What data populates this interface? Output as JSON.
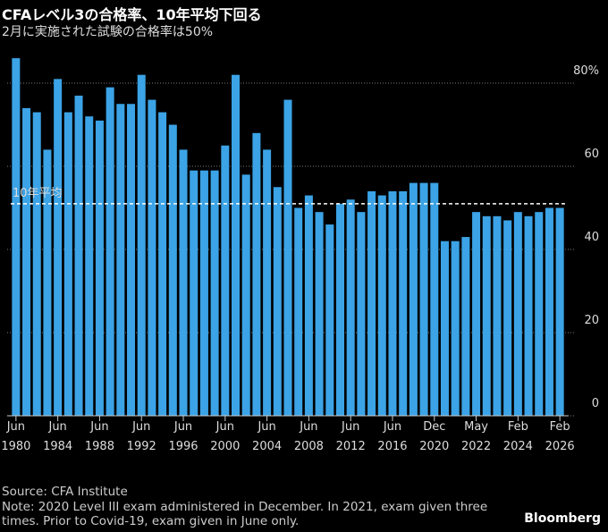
{
  "chart_data": {
    "type": "bar",
    "title": "CFAレベル3の合格率、10年平均下回る",
    "subtitle": "2月に実施された試験の合格率は50%",
    "categories": [
      "Jun 1980",
      null,
      null,
      null,
      "Jun 1984",
      null,
      null,
      null,
      "Jun 1988",
      null,
      null,
      null,
      "Jun 1992",
      null,
      null,
      null,
      "Jun 1996",
      null,
      null,
      null,
      "Jun 2000",
      null,
      null,
      null,
      "Jun 2004",
      null,
      null,
      null,
      "Jun 2008",
      null,
      null,
      null,
      "Jun 2012",
      null,
      null,
      null,
      "Jun 2016",
      null,
      null,
      null,
      "Dec 2020",
      null,
      null,
      null,
      "May 2022",
      null,
      null,
      null,
      "Feb 2024",
      null,
      null,
      null,
      "Feb 2026"
    ],
    "values": [
      86,
      74,
      73,
      64,
      81,
      73,
      77,
      72,
      71,
      79,
      75,
      75,
      82,
      76,
      73,
      70,
      64,
      59,
      59,
      59,
      65,
      82,
      58,
      68,
      64,
      55,
      76,
      50,
      53,
      49,
      46,
      51,
      52,
      49,
      54,
      53,
      54,
      54,
      56,
      56,
      56,
      42,
      42,
      43,
      49,
      48,
      48,
      47,
      49,
      48,
      49,
      50,
      50
    ],
    "color": "#3ba3e6",
    "ylim": [
      0,
      90
    ],
    "yticks": [
      0,
      20,
      40,
      60,
      {
        "value": 80,
        "label": "80%"
      }
    ],
    "grid": true,
    "reference_line": {
      "label": "10年平均",
      "value": 51
    },
    "source": "Source: CFA Institute",
    "note": "Note: 2020 Level III exam administered in December. In 2021, exam given three times. Prior to Covid-19, exam given in June only.",
    "brand": "Bloomberg"
  }
}
